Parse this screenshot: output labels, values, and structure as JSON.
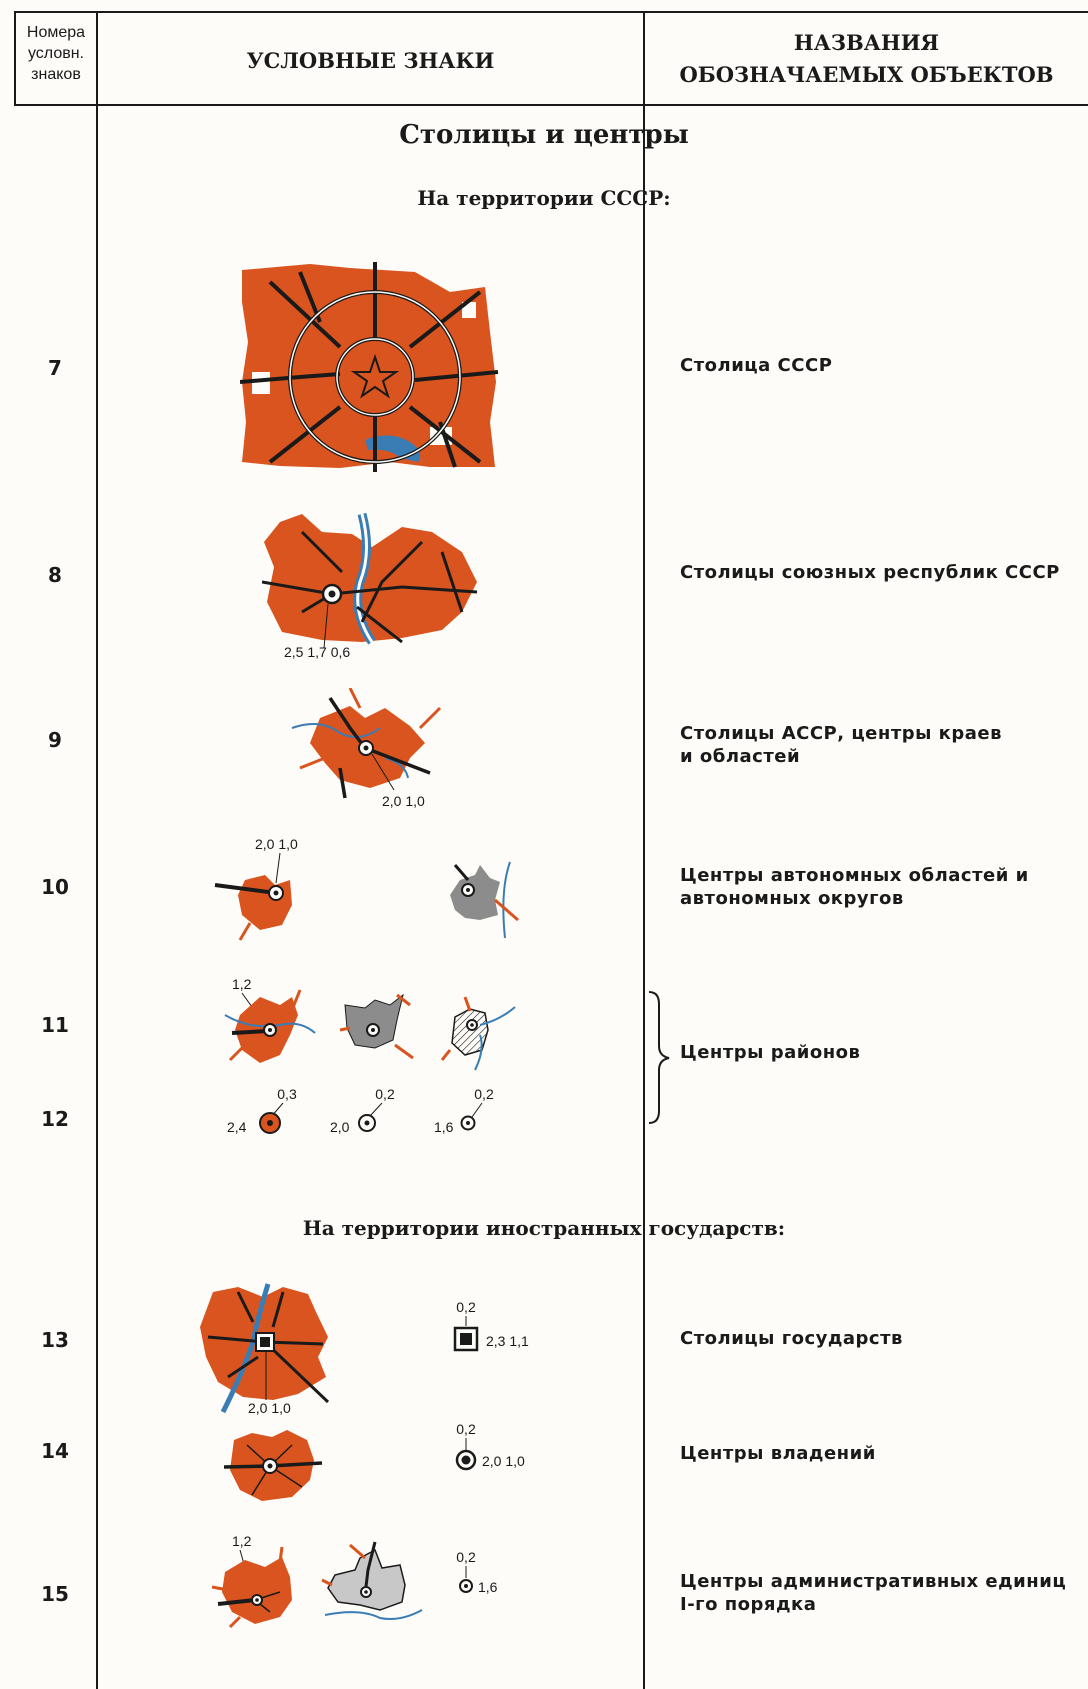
{
  "header": {
    "col1": "Номера условн. знаков",
    "col2": "УСЛОВНЫЕ ЗНАКИ",
    "col3_line1": "НАЗВАНИЯ",
    "col3_line2": "ОБОЗНАЧАЕМЫХ ОБЪЕКТОВ"
  },
  "section_title": "Столицы и центры",
  "subsection_ussr": "На территории СССР:",
  "subsection_foreign": "На территории иностранных государств:",
  "rows": [
    {
      "number": "7",
      "name": "Столица СССР"
    },
    {
      "number": "8",
      "name": "Столицы союзных республик СССР"
    },
    {
      "number": "9",
      "name_line1": "Столицы АССР, центры краев",
      "name_line2": "и областей"
    },
    {
      "number": "10",
      "name_line1": "Центры автономных областей и",
      "name_line2": "автономных округов"
    },
    {
      "number": "11",
      "name": "Центры районов"
    },
    {
      "number": "12"
    },
    {
      "number": "13",
      "name": "Столицы государств"
    },
    {
      "number": "14",
      "name": "Центры владений"
    },
    {
      "number": "15",
      "name_line1": "Центры административных единиц",
      "name_line2": "I-го порядка"
    }
  ],
  "dims": {
    "r8": "2,5 1,7 0,6",
    "r9": "2,0 1,0",
    "r10": "2,0 1,0",
    "r11": "1,2",
    "r12a_top": "0,3",
    "r12a_side": "2,4",
    "r12b_top": "0,2",
    "r12b_side": "2,0",
    "r12c_top": "0,2",
    "r12c_side": "1,6",
    "r13_map": "2,0 1,0",
    "r13_top": "0,2",
    "r13_side": "2,3 1,1",
    "r14_top": "0,2",
    "r14_side": "2,0 1,0",
    "r15_map": "1,2",
    "r15_top": "0,2",
    "r15_side": "1,6"
  },
  "colors": {
    "city_fill": "#d9541e",
    "river": "#3a7db5",
    "road": "#1a1a1a",
    "gray_fill": "#8c8c8c",
    "light_gray": "#c8c8c8",
    "accent_red": "#d9541e"
  }
}
